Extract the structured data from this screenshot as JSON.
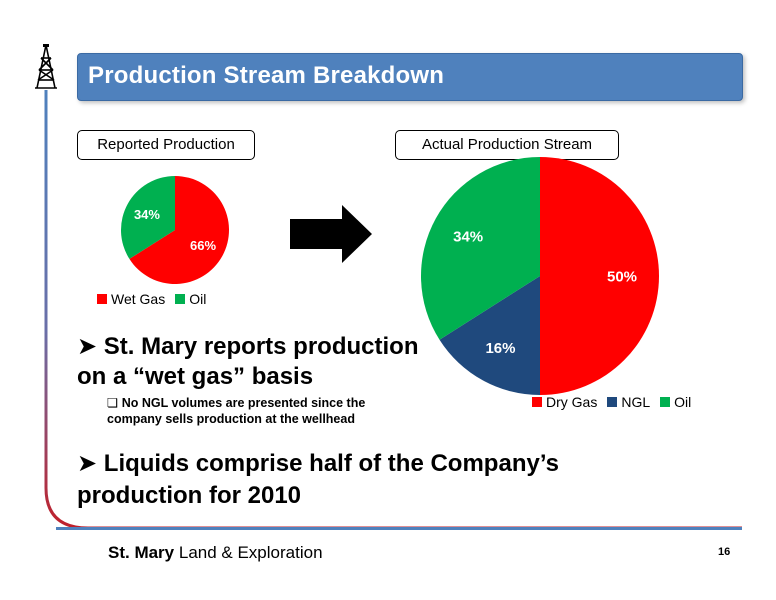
{
  "header": {
    "title": "Production Stream Breakdown"
  },
  "labels": {
    "reported": "Reported Production",
    "actual": "Actual Production Stream"
  },
  "colors": {
    "title_bg": "#4f81bd",
    "red": "#ff0000",
    "green": "#00b050",
    "navy": "#1f497d"
  },
  "chart_data": [
    {
      "type": "pie",
      "title": "Reported Production",
      "categories": [
        "Wet Gas",
        "Oil"
      ],
      "values": [
        66,
        34
      ],
      "value_labels": [
        "66%",
        "34%"
      ],
      "colors": [
        "#ff0000",
        "#00b050"
      ],
      "legend": "bottom"
    },
    {
      "type": "pie",
      "title": "Actual Production Stream",
      "categories": [
        "Dry Gas",
        "NGL",
        "Oil"
      ],
      "values": [
        50,
        16,
        34
      ],
      "value_labels": [
        "50%",
        "16%",
        "34%"
      ],
      "colors": [
        "#ff0000",
        "#1f497d",
        "#00b050"
      ],
      "legend": "bottom"
    }
  ],
  "bullets": {
    "b1_line1": "St.  Mary reports production",
    "b1_line2": "on a “wet gas” basis",
    "sub_line1": "No NGL volumes are presented since the",
    "sub_line2": "company sells production at the wellhead",
    "b2_line1": "Liquids comprise half of the Company’s",
    "b2_line2": "production for 2010"
  },
  "footer": {
    "logo_bold": "St. Mary",
    "logo_rest": " Land & Exploration",
    "page_number": "16"
  }
}
